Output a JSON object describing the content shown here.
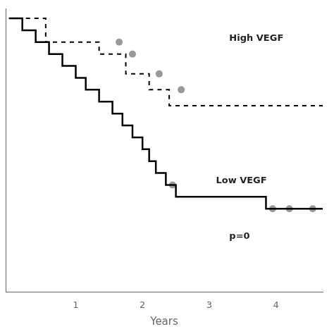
{
  "chart_data": {
    "type": "line",
    "xlabel": "Years",
    "xlim": [
      -0.05,
      4.7
    ],
    "ylim": [
      -0.38,
      1.05
    ],
    "xticks": [
      1,
      2,
      3,
      4
    ],
    "tick_labels": "x",
    "grid": false,
    "series": [
      {
        "name": "High VEGF",
        "color": "#000000",
        "line_style": "dashed",
        "x": [
          0,
          0.55,
          0.55,
          1.35,
          1.35,
          1.75,
          1.75,
          2.1,
          2.1,
          2.4,
          2.4,
          2.7,
          2.7,
          4.7
        ],
        "values": [
          1.0,
          1.0,
          0.88,
          0.88,
          0.82,
          0.82,
          0.72,
          0.72,
          0.64,
          0.64,
          0.56,
          0.56,
          0.56,
          0.56
        ]
      },
      {
        "name": "Low VEGF",
        "color": "#000000",
        "line_style": "solid",
        "x": [
          0,
          0.2,
          0.2,
          0.4,
          0.4,
          0.6,
          0.6,
          0.8,
          0.8,
          1.0,
          1.0,
          1.15,
          1.15,
          1.35,
          1.35,
          1.55,
          1.55,
          1.7,
          1.7,
          1.85,
          1.85,
          2.0,
          2.0,
          2.1,
          2.1,
          2.2,
          2.2,
          2.35,
          2.35,
          2.5,
          2.5,
          3.85,
          3.85,
          4.05,
          4.05,
          4.7
        ],
        "values": [
          1.0,
          1.0,
          0.94,
          0.94,
          0.88,
          0.88,
          0.82,
          0.82,
          0.76,
          0.76,
          0.7,
          0.7,
          0.64,
          0.64,
          0.58,
          0.58,
          0.52,
          0.52,
          0.46,
          0.46,
          0.4,
          0.4,
          0.34,
          0.34,
          0.28,
          0.28,
          0.22,
          0.22,
          0.16,
          0.16,
          0.1,
          0.1,
          0.04,
          0.04,
          0.04,
          0.04
        ]
      },
      {
        "type": "scatter",
        "color": "#999999",
        "marker": "circle",
        "x": [
          1.65,
          1.85,
          2.25,
          2.58
        ],
        "values": [
          0.88,
          0.82,
          0.72,
          0.64
        ]
      },
      {
        "type": "scatter",
        "color": "#999999",
        "marker": "circle",
        "x": [
          2.45,
          3.95,
          4.2,
          4.55
        ],
        "values": [
          0.16,
          0.04,
          0.04,
          0.04
        ]
      }
    ],
    "annotations": [
      {
        "text": "High VEGF",
        "x": 3.3,
        "y": 0.9
      },
      {
        "text": "Low VEGF",
        "x": 3.1,
        "y": 0.18
      },
      {
        "text": "p=0",
        "x": 3.3,
        "y": -0.1
      }
    ]
  }
}
